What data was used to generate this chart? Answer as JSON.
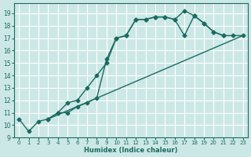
{
  "xlabel": "Humidex (Indice chaleur)",
  "ylabel": "",
  "bg_color": "#cce8e6",
  "grid_color": "#ffffff",
  "line_color": "#1a6b60",
  "marker": "D",
  "markersize": 2.5,
  "linewidth": 1.0,
  "xlim": [
    -0.5,
    23.5
  ],
  "ylim": [
    9.0,
    19.8
  ],
  "xticks": [
    0,
    1,
    2,
    3,
    4,
    5,
    6,
    7,
    8,
    9,
    10,
    11,
    12,
    13,
    14,
    15,
    16,
    17,
    18,
    19,
    20,
    21,
    22,
    23
  ],
  "yticks": [
    9,
    10,
    11,
    12,
    13,
    14,
    15,
    16,
    17,
    18,
    19
  ],
  "series": [
    {
      "x": [
        0,
        1,
        2,
        3,
        4,
        5,
        6,
        7,
        8,
        9,
        10,
        11,
        12,
        13,
        14,
        15,
        16,
        17,
        18,
        19,
        20,
        21
      ],
      "y": [
        10.5,
        9.5,
        10.3,
        10.5,
        11.0,
        11.8,
        12.0,
        13.0,
        14.0,
        15.0,
        17.0,
        17.2,
        18.5,
        18.5,
        18.7,
        18.7,
        18.5,
        19.2,
        18.8,
        18.2,
        17.5,
        17.2
      ]
    },
    {
      "x": [
        3,
        4,
        5,
        6,
        7,
        8,
        9,
        10,
        11,
        12,
        13,
        14,
        15,
        16,
        17,
        18,
        19,
        20,
        21,
        22,
        23
      ],
      "y": [
        10.5,
        11.0,
        11.0,
        11.5,
        11.8,
        12.2,
        15.3,
        17.0,
        17.2,
        18.5,
        18.5,
        18.7,
        18.7,
        18.5,
        17.2,
        18.8,
        18.2,
        17.5,
        17.2,
        17.2,
        17.2
      ]
    },
    {
      "x": [
        3,
        23
      ],
      "y": [
        10.5,
        17.2
      ]
    }
  ]
}
